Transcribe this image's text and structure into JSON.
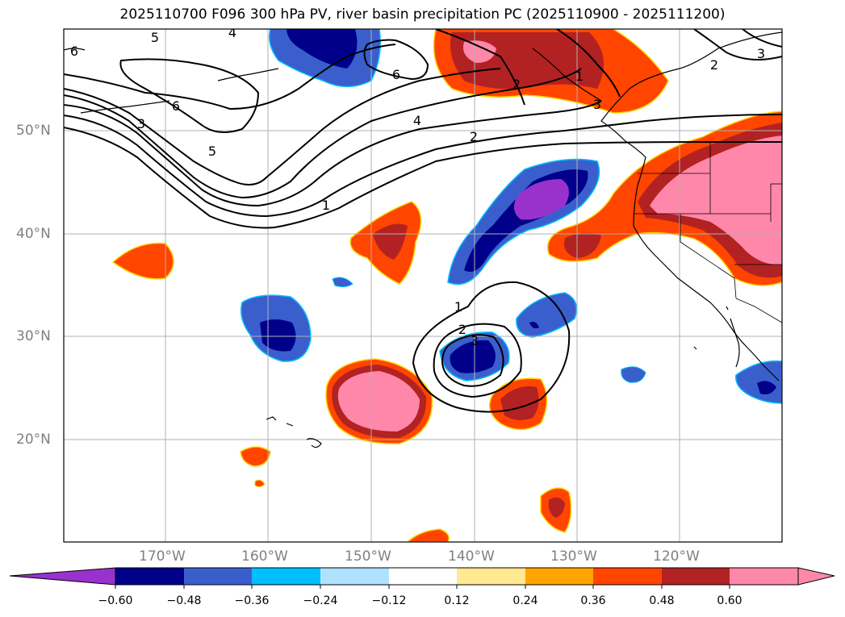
{
  "title": "2025110700 F096 300 hPa PV, river basin precipitation PC (2025110900 - 2025111200)",
  "map": {
    "lat_labels": [
      "50°N",
      "40°N",
      "30°N",
      "20°N"
    ],
    "lon_labels": [
      "170°W",
      "160°W",
      "150°W",
      "140°W",
      "130°W",
      "120°W"
    ]
  },
  "pv_contour_labels": [
    "6",
    "5",
    "4",
    "3",
    "2",
    "1",
    "6",
    "6",
    "5",
    "4",
    "3",
    "2",
    "1",
    "2",
    "3",
    "1",
    "2",
    "3"
  ],
  "colorbar": {
    "ticks": [
      "−0.60",
      "−0.48",
      "−0.36",
      "−0.24",
      "−0.12",
      "0.12",
      "0.24",
      "0.36",
      "0.48",
      "0.60"
    ],
    "colors": [
      "#9932cc",
      "#00008b",
      "#3a5fcd",
      "#00bfff",
      "#b0e2ff",
      "#ffffff",
      "#ffe991",
      "#ffa500",
      "#ff4500",
      "#b22222",
      "#ff88aa",
      "#ff88aa"
    ]
  }
}
